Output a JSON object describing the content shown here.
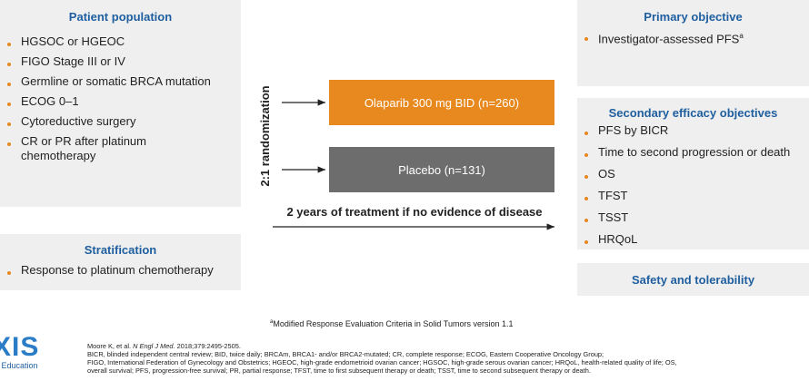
{
  "left": {
    "patient_population": {
      "title": "Patient population",
      "items": [
        "HGSOC or HGEOC",
        "FIGO Stage III or IV",
        "Germline or somatic BRCA mutation",
        "ECOG 0–1",
        "Cytoreductive surgery",
        "CR or PR after platinum chemotherapy"
      ]
    },
    "stratification": {
      "title": "Stratification",
      "items": [
        "Response to platinum chemotherapy"
      ]
    }
  },
  "center": {
    "randomization": "2:1 randomization",
    "arms": [
      "Olaparib 300 mg BID (n=260)",
      "Placebo (n=131)"
    ],
    "duration": "2 years of treatment if no evidence of disease"
  },
  "right": {
    "primary": {
      "title": "Primary objective",
      "items": [
        {
          "text": "Investigator-assessed PFS",
          "sup": "a"
        }
      ]
    },
    "secondary": {
      "title": "Secondary efficacy objectives",
      "items": [
        "PFS by BICR",
        "Time to second progression or death",
        "OS",
        "TFST",
        "TSST",
        "HRQoL"
      ]
    },
    "safety": {
      "title": "Safety and tolerability"
    }
  },
  "footnote": {
    "marker": "a",
    "text": "Modified Response Evaluation Criteria in Solid Tumors version 1.1"
  },
  "references": {
    "citation": [
      "Moore K, et al. ",
      "N Engl J Med",
      ". 2018;379:2495-2505."
    ],
    "lines": [
      "BICR, blinded independent central review; BID, twice daily; BRCAm, BRCA1- and/or BRCA2-mutated; CR, complete response; ECOG, Eastern Cooperative Oncology Group;",
      "FIGO, International Federation of Gynecology and Obstetrics; HGEOC, high-grade endometrioid ovarian cancer; HGSOC, high-grade serous ovarian cancer; HRQoL, health-related quality of life; OS,",
      "overall survival; PFS, progression-free survival; PR, partial response; TFST, time to first subsequent therapy or death; TSST, time to second subsequent therapy or death."
    ]
  },
  "logo": {
    "text": "XIS",
    "subtitle": "al Education"
  }
}
